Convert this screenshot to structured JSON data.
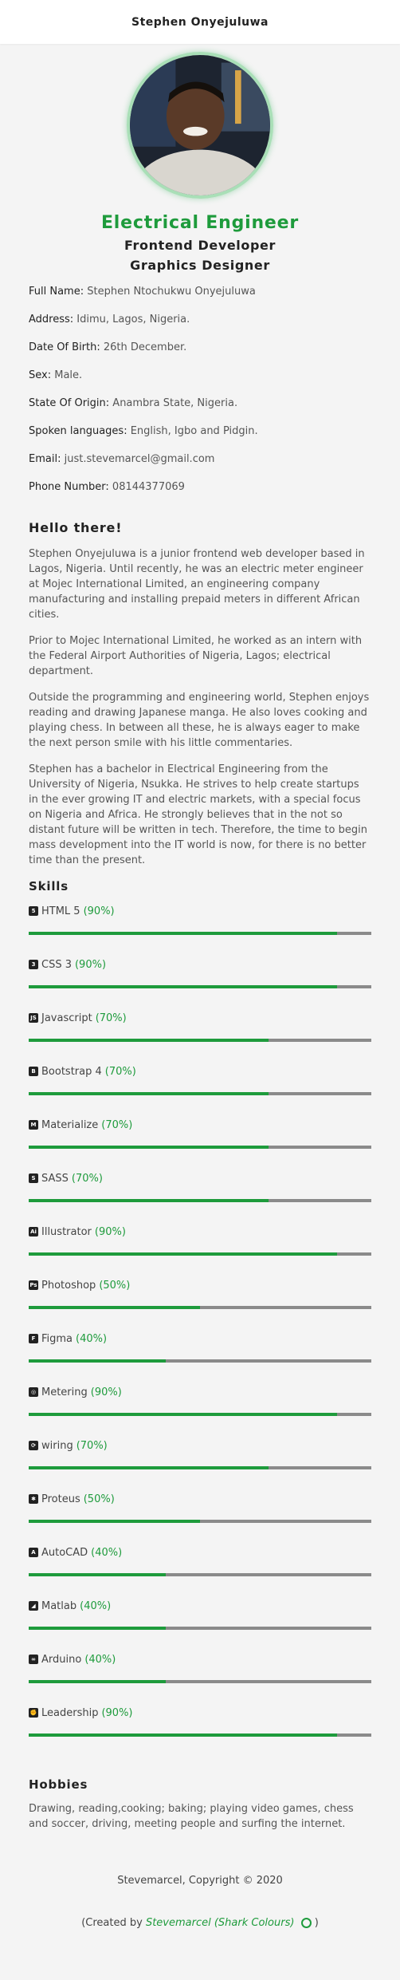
{
  "header": {
    "name": "Stephen Onyejuluwa"
  },
  "hero": {
    "title": "Electrical Engineer",
    "subtitle1": "Frontend Developer",
    "subtitle2": "Graphics Designer"
  },
  "info": [
    {
      "key": "Full Name:",
      "value": "Stephen Ntochukwu Onyejuluwa"
    },
    {
      "key": "Address:",
      "value": "Idimu, Lagos, Nigeria."
    },
    {
      "key": "Date Of Birth:",
      "value": "26th December."
    },
    {
      "key": "Sex:",
      "value": "Male."
    },
    {
      "key": "State Of Origin:",
      "value": "Anambra State, Nigeria."
    },
    {
      "key": "Spoken languages:",
      "value": "English, Igbo and Pidgin."
    },
    {
      "key": "Email:",
      "value": "just.stevemarcel@gmail.com"
    },
    {
      "key": "Phone Number:",
      "value": "08144377069"
    }
  ],
  "about": {
    "heading": "Hello there!",
    "paragraphs": [
      "Stephen Onyejuluwa is a junior frontend web developer based in Lagos, Nigeria. Until recently, he was an electric meter engineer at Mojec International Limited, an engineering company manufacturing and installing prepaid meters in different African cities.",
      "Prior to Mojec International Limited, he worked as an intern with the Federal Airport Authorities of Nigeria, Lagos; electrical department.",
      "Outside the programming and engineering world, Stephen enjoys reading and drawing Japanese manga. He also loves cooking and playing chess. In between all these, he is always eager to make the next person smile with his little commentaries.",
      "Stephen has a bachelor in Electrical Engineering from the University of Nigeria, Nsukka. He strives to help create startups in the ever growing IT and electric markets, with a special focus on Nigeria and Africa. He strongly believes that in the not so distant future will be written in tech. Therefore, the time to begin mass development into the IT world is now, for there is no better time than the present."
    ]
  },
  "skills": {
    "heading": "Skills",
    "items": [
      {
        "name": "HTML 5",
        "pct_label": "(90%)",
        "value": 0.9,
        "icon": "html5-icon",
        "glyph": "5"
      },
      {
        "name": "CSS 3",
        "pct_label": "(90%)",
        "value": 0.9,
        "icon": "css3-icon",
        "glyph": "3"
      },
      {
        "name": "Javascript",
        "pct_label": "(70%)",
        "value": 0.7,
        "icon": "js-icon",
        "glyph": "JS"
      },
      {
        "name": "Bootstrap 4",
        "pct_label": "(70%)",
        "value": 0.7,
        "icon": "bootstrap-icon",
        "glyph": "B"
      },
      {
        "name": "Materialize",
        "pct_label": "(70%)",
        "value": 0.7,
        "icon": "materialize-icon",
        "glyph": "M"
      },
      {
        "name": "SASS",
        "pct_label": "(70%)",
        "value": 0.7,
        "icon": "sass-icon",
        "glyph": "S"
      },
      {
        "name": "Illustrator",
        "pct_label": "(90%)",
        "value": 0.9,
        "icon": "illustrator-icon",
        "glyph": "Ai"
      },
      {
        "name": "Photoshop",
        "pct_label": "(50%)",
        "value": 0.5,
        "icon": "photoshop-icon",
        "glyph": "Ps"
      },
      {
        "name": "Figma",
        "pct_label": "(40%)",
        "value": 0.4,
        "icon": "figma-icon",
        "glyph": "F"
      },
      {
        "name": "Metering",
        "pct_label": "(90%)",
        "value": 0.9,
        "icon": "meter-icon",
        "glyph": "◎"
      },
      {
        "name": "wiring",
        "pct_label": "(70%)",
        "value": 0.7,
        "icon": "wiring-icon",
        "glyph": "⟳"
      },
      {
        "name": "Proteus",
        "pct_label": "(50%)",
        "value": 0.5,
        "icon": "proteus-icon",
        "glyph": "✱"
      },
      {
        "name": "AutoCAD",
        "pct_label": "(40%)",
        "value": 0.4,
        "icon": "autocad-icon",
        "glyph": "A"
      },
      {
        "name": "Matlab",
        "pct_label": "(40%)",
        "value": 0.4,
        "icon": "matlab-icon",
        "glyph": "◢"
      },
      {
        "name": "Arduino",
        "pct_label": "(40%)",
        "value": 0.4,
        "icon": "arduino-icon",
        "glyph": "∞"
      },
      {
        "name": "Leadership",
        "pct_label": "(90%)",
        "value": 0.9,
        "icon": "leadership-icon",
        "glyph": "✊"
      }
    ]
  },
  "hobbies": {
    "heading": "Hobbies",
    "text": "Drawing, reading,cooking; baking; playing video games, chess and soccer, driving, meeting people and surfing the internet."
  },
  "footer": {
    "copyright": "Stevemarcel, Copyright © 2020",
    "credit_prefix": "(Created by",
    "credit_link": "Stevemarcel (Shark Colours)",
    "credit_suffix": ")"
  },
  "colors": {
    "accent": "#1e9b3c",
    "track": "#8a8a8a"
  }
}
